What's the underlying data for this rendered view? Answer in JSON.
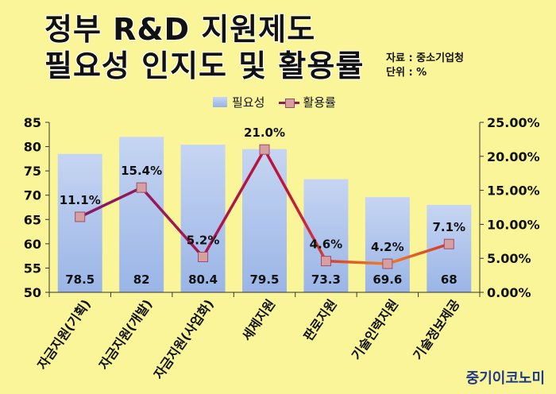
{
  "title_line1": "정부 R&D 지원제도",
  "title_line2": "필요성 인지도 및 활용률",
  "source_line1": "자료 : 중소기업청",
  "source_line2": "단위 : %",
  "brand": "중기이코노미",
  "chart_data": {
    "type": "bar",
    "categories": [
      "자금지원(기획)",
      "자금지원(개발)",
      "자금지원(사업화)",
      "세제지원",
      "판로지원",
      "기술인력지원",
      "기술정보제공"
    ],
    "series": [
      {
        "name": "필요성",
        "type": "bar",
        "axis": "left",
        "values": [
          78.5,
          82,
          80.4,
          79.5,
          73.3,
          69.6,
          68
        ],
        "labels": [
          "78.5",
          "82",
          "80.4",
          "79.5",
          "73.3",
          "69.6",
          "68"
        ]
      },
      {
        "name": "활용률",
        "type": "line",
        "axis": "right",
        "values": [
          11.1,
          15.4,
          5.2,
          21.0,
          4.6,
          4.2,
          7.1
        ],
        "labels": [
          "11.1%",
          "15.4%",
          "5.2%",
          "21.0%",
          "4.6%",
          "4.2%",
          "7.1%"
        ]
      }
    ],
    "left_axis": {
      "ylim": [
        50,
        85
      ],
      "ticks": [
        "50",
        "55",
        "60",
        "65",
        "70",
        "75",
        "80",
        "85"
      ]
    },
    "right_axis": {
      "ylim": [
        0,
        25
      ],
      "ticks": [
        "0.00%",
        "5.00%",
        "10.00%",
        "15.00%",
        "20.00%",
        "25.00%"
      ]
    },
    "legend_position": "top",
    "grid": false,
    "colors": {
      "bar_top": "#c6d5f2",
      "bar_bottom": "#9ab5e6",
      "line_start": "#7a1a6e",
      "line_mid": "#c0143c",
      "line_end": "#f08020",
      "marker": "#d7a0a0"
    }
  }
}
